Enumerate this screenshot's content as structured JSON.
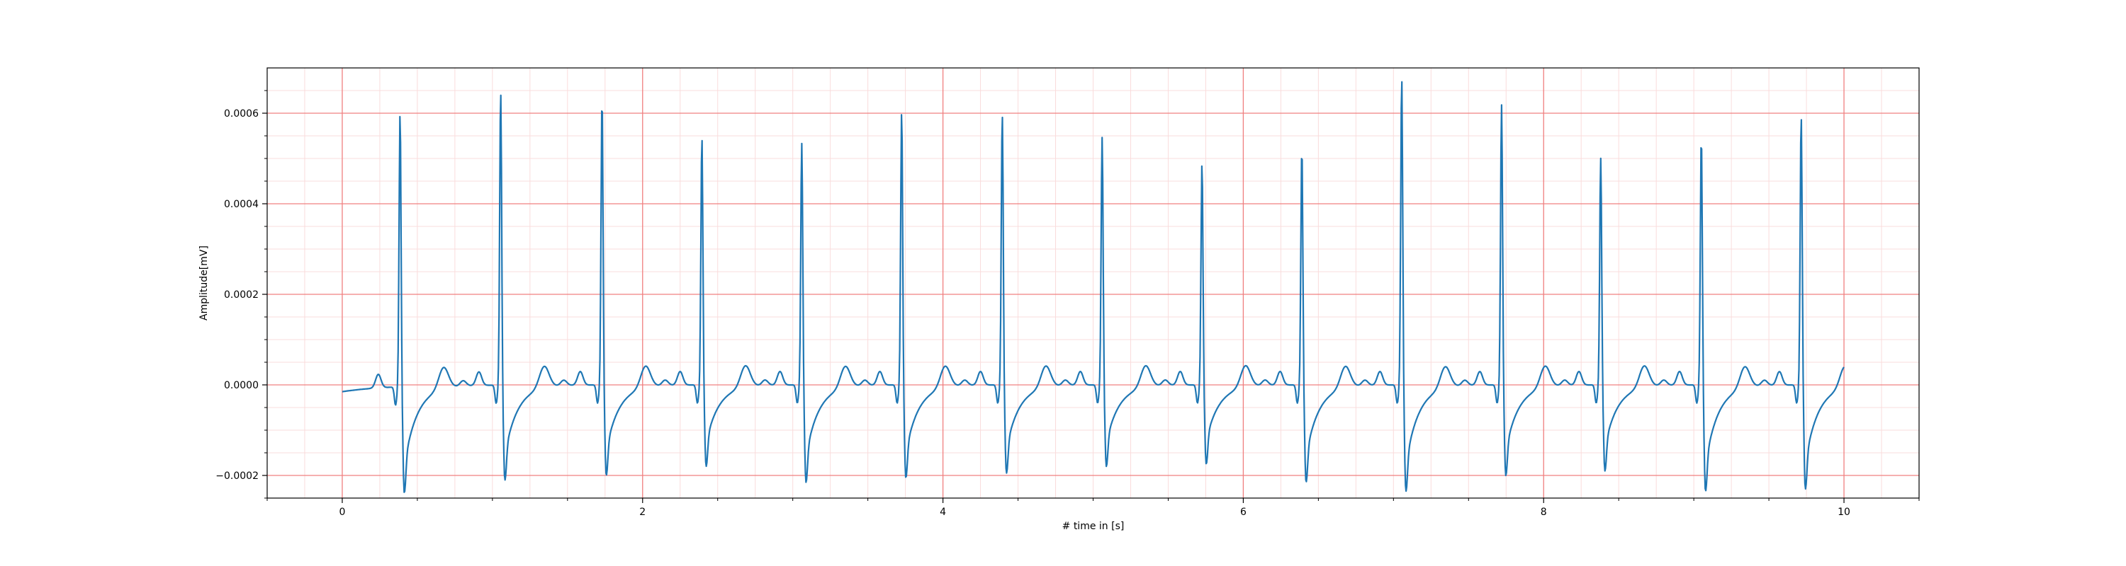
{
  "chart_data": {
    "type": "line",
    "xlabel": "# time in [s]",
    "ylabel": "Amplitude[mV]",
    "xlim": [
      -0.5,
      10.5
    ],
    "ylim": [
      -0.00025,
      0.0007
    ],
    "x_ticks": [
      0,
      2,
      4,
      6,
      8,
      10
    ],
    "x_tick_labels": [
      "0",
      "2",
      "4",
      "6",
      "8",
      "10"
    ],
    "y_ticks": [
      -0.0002,
      0.0,
      0.0002,
      0.0004,
      0.0006
    ],
    "y_tick_labels": [
      "−0.0002",
      "0.0000",
      "0.0002",
      "0.0004",
      "0.0006"
    ],
    "grid": {
      "major": true,
      "minor": true,
      "major_color": "#f08080",
      "minor_color": "#fadcdc"
    },
    "line_color": "#1f77b4",
    "sample_rate_hz": 250,
    "beats": [
      {
        "r_time": 0.385,
        "r_peak": 0.000575,
        "s_trough": -0.000205
      },
      {
        "r_time": 1.055,
        "r_peak": 0.00062,
        "s_trough": -0.00018
      },
      {
        "r_time": 1.73,
        "r_peak": 0.000605,
        "s_trough": -0.00017
      },
      {
        "r_time": 2.395,
        "r_peak": 0.000518,
        "s_trough": -0.00015
      },
      {
        "r_time": 3.06,
        "r_peak": 0.000505,
        "s_trough": -0.000185
      },
      {
        "r_time": 3.725,
        "r_peak": 0.000575,
        "s_trough": -0.000175
      },
      {
        "r_time": 4.395,
        "r_peak": 0.00057,
        "s_trough": -0.000165
      },
      {
        "r_time": 5.06,
        "r_peak": 0.000518,
        "s_trough": -0.00015
      },
      {
        "r_time": 5.725,
        "r_peak": 0.00046,
        "s_trough": -0.000145
      },
      {
        "r_time": 6.39,
        "r_peak": 0.000495,
        "s_trough": -0.000185
      },
      {
        "r_time": 7.055,
        "r_peak": 0.00065,
        "s_trough": -0.000205
      },
      {
        "r_time": 7.72,
        "r_peak": 0.00059,
        "s_trough": -0.00017
      },
      {
        "r_time": 8.38,
        "r_peak": 0.000472,
        "s_trough": -0.00016
      },
      {
        "r_time": 9.05,
        "r_peak": 0.00052,
        "s_trough": -0.000205
      },
      {
        "r_time": 9.715,
        "r_peak": 0.000565,
        "s_trough": -0.0002
      }
    ]
  }
}
